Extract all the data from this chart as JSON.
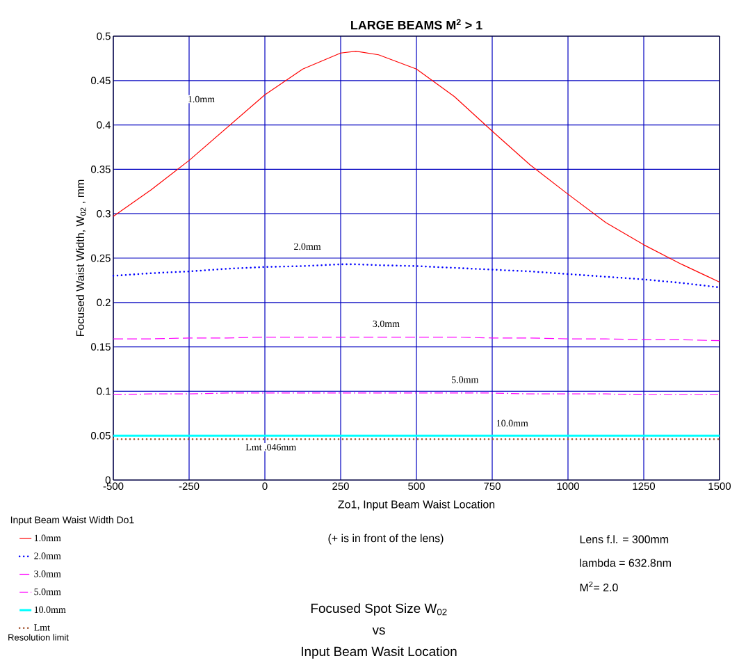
{
  "chart_data": {
    "type": "line",
    "title": "LARGE BEAMS  M$^{2}$ > 1",
    "xlabel": "Zo1, Input Beam Waist Location",
    "ylabel": "Focused Waist Width, W$_{02}$ , mm",
    "legend_title": "Input Beam Waist Width Do1",
    "xlim": [
      -500,
      1500
    ],
    "ylim": [
      0,
      0.5
    ],
    "xticks": [
      -500,
      -250,
      0,
      250,
      500,
      750,
      1000,
      1250,
      1500
    ],
    "yticks": [
      0,
      0.05,
      0.1,
      0.15,
      0.2,
      0.25,
      0.3,
      0.35,
      0.4,
      0.45,
      0.5
    ],
    "grid": true,
    "legend": "bottom left",
    "x": [
      -500,
      -375,
      -250,
      -125,
      0,
      125,
      250,
      300,
      375,
      500,
      625,
      750,
      875,
      1000,
      1125,
      1250,
      1375,
      1500
    ],
    "series": [
      {
        "name": "1.0mm",
        "color": "#ff0000",
        "line_style": "solid",
        "values": [
          0.297,
          0.327,
          0.36,
          0.397,
          0.434,
          0.463,
          0.481,
          0.483,
          0.479,
          0.463,
          0.432,
          0.393,
          0.355,
          0.322,
          0.29,
          0.265,
          0.243,
          0.223
        ]
      },
      {
        "name": "2.0mm",
        "color": "#0000ff",
        "line_style": "dotted",
        "values": [
          0.23,
          0.233,
          0.235,
          0.238,
          0.24,
          0.241,
          0.243,
          0.243,
          0.242,
          0.241,
          0.239,
          0.237,
          0.235,
          0.232,
          0.229,
          0.226,
          0.222,
          0.217
        ]
      },
      {
        "name": "3.0mm",
        "color": "#ff00ff",
        "line_style": "dashed",
        "values": [
          0.159,
          0.159,
          0.16,
          0.16,
          0.161,
          0.161,
          0.161,
          0.161,
          0.161,
          0.161,
          0.161,
          0.16,
          0.16,
          0.159,
          0.159,
          0.158,
          0.158,
          0.157
        ]
      },
      {
        "name": "5.0mm",
        "color": "#ff00ff",
        "line_style": "dashdotted",
        "values": [
          0.096,
          0.097,
          0.097,
          0.098,
          0.098,
          0.098,
          0.098,
          0.098,
          0.098,
          0.098,
          0.098,
          0.098,
          0.097,
          0.097,
          0.097,
          0.096,
          0.096,
          0.096
        ]
      },
      {
        "name": "10.0mm",
        "color": "#00ffff",
        "line_style": "solid",
        "values": [
          0.05,
          0.05,
          0.05,
          0.05,
          0.05,
          0.05,
          0.05,
          0.05,
          0.05,
          0.05,
          0.05,
          0.05,
          0.05,
          0.05,
          0.05,
          0.05,
          0.05,
          0.05
        ]
      },
      {
        "name": "Lmt",
        "color": "#a0522d",
        "line_style": "dotted",
        "values": [
          0.046,
          0.046,
          0.046,
          0.046,
          0.046,
          0.046,
          0.046,
          0.046,
          0.046,
          0.046,
          0.046,
          0.046,
          0.046,
          0.046,
          0.046,
          0.046,
          0.046,
          0.046
        ]
      }
    ],
    "annotations": [
      "1.0mm",
      "2.0mm",
      "3.0mm",
      "5.0mm",
      "10.0mm",
      "Lmt  .046mm",
      "(+ is in front of the lens)",
      "Lens f.l. = 300mm",
      "lambda = 632.8nm",
      "M$^{2}$= 2.0",
      "Focused Spot Size W$_{02}$",
      "vs",
      "Input Beam Wasit Location",
      "Resolution limit"
    ]
  }
}
